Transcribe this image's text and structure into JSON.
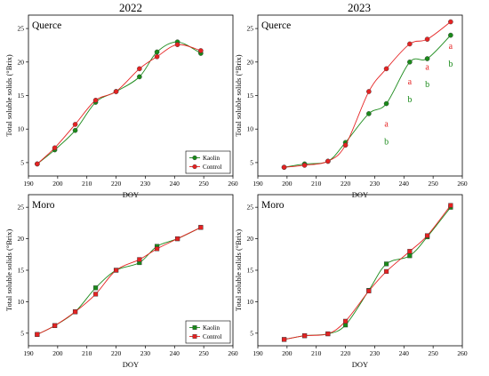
{
  "columns": [
    {
      "id": "c2022",
      "label": "2022"
    },
    {
      "id": "c2023",
      "label": "2023"
    }
  ],
  "colors": {
    "Kaolin": "#1a8a1a",
    "Control": "#e52222"
  },
  "chart_data": [
    {
      "id": "q22",
      "type": "line",
      "panel_label": "Querce",
      "xlabel": "DOY",
      "ylabel": "Total soluble solids (°Brix)",
      "xlim": [
        190,
        260
      ],
      "ylim": [
        3,
        27
      ],
      "xticks": [
        190,
        200,
        210,
        220,
        230,
        240,
        250,
        260
      ],
      "yticks": [
        5,
        10,
        15,
        20,
        25
      ],
      "legend": "bottom-right",
      "marker": "circle",
      "series": [
        {
          "name": "Kaolin",
          "x": [
            193,
            199,
            206,
            213,
            220,
            228,
            234,
            241,
            249
          ],
          "y": [
            4.8,
            6.9,
            9.8,
            14.0,
            15.6,
            17.8,
            21.5,
            23.0,
            21.3
          ]
        },
        {
          "name": "Control",
          "x": [
            193,
            199,
            206,
            213,
            220,
            228,
            234,
            241,
            249
          ],
          "y": [
            4.8,
            7.2,
            10.7,
            14.3,
            15.6,
            19.0,
            20.8,
            22.6,
            21.7
          ]
        }
      ],
      "annotations": []
    },
    {
      "id": "q23",
      "type": "line",
      "panel_label": "Querce",
      "xlabel": "DOY",
      "ylabel": "Total soluble solids (°Brix)",
      "xlim": [
        190,
        260
      ],
      "ylim": [
        3,
        27
      ],
      "xticks": [
        190,
        200,
        210,
        220,
        230,
        240,
        250,
        260
      ],
      "yticks": [
        5,
        10,
        15,
        20,
        25
      ],
      "legend": "none",
      "marker": "circle",
      "series": [
        {
          "name": "Kaolin",
          "x": [
            199,
            206,
            214,
            220,
            228,
            234,
            242,
            248,
            256
          ],
          "y": [
            4.3,
            4.8,
            5.2,
            8.0,
            12.3,
            13.8,
            20.0,
            20.5,
            24.0
          ]
        },
        {
          "name": "Control",
          "x": [
            199,
            206,
            214,
            220,
            228,
            234,
            242,
            248,
            256
          ],
          "y": [
            4.3,
            4.6,
            5.2,
            7.6,
            15.6,
            19.0,
            22.7,
            23.4,
            26.0
          ]
        }
      ],
      "annotations": [
        {
          "text": "a",
          "x": 234,
          "y": 10.8,
          "series": "Control"
        },
        {
          "text": "b",
          "x": 234,
          "y": 8.2,
          "series": "Kaolin"
        },
        {
          "text": "a",
          "x": 242,
          "y": 17.1,
          "series": "Control"
        },
        {
          "text": "b",
          "x": 242,
          "y": 14.5,
          "series": "Kaolin"
        },
        {
          "text": "a",
          "x": 248,
          "y": 19.3,
          "series": "Control"
        },
        {
          "text": "b",
          "x": 248,
          "y": 16.7,
          "series": "Kaolin"
        },
        {
          "text": "a",
          "x": 256,
          "y": 22.4,
          "series": "Control"
        },
        {
          "text": "b",
          "x": 256,
          "y": 19.8,
          "series": "Kaolin"
        }
      ]
    },
    {
      "id": "m22",
      "type": "line",
      "panel_label": "Moro",
      "xlabel": "DOY",
      "ylabel": "Total soluble solids (°Brix)",
      "xlim": [
        190,
        260
      ],
      "ylim": [
        3,
        27
      ],
      "xticks": [
        190,
        200,
        210,
        220,
        230,
        240,
        250,
        260
      ],
      "yticks": [
        5,
        10,
        15,
        20,
        25
      ],
      "legend": "bottom-right",
      "marker": "square",
      "series": [
        {
          "name": "Kaolin",
          "x": [
            193,
            199,
            206,
            213,
            220,
            228,
            234,
            241,
            249
          ],
          "y": [
            4.8,
            6.2,
            8.4,
            12.2,
            15.0,
            16.2,
            18.8,
            20.0,
            21.8
          ]
        },
        {
          "name": "Control",
          "x": [
            193,
            199,
            206,
            213,
            220,
            228,
            234,
            241,
            249
          ],
          "y": [
            4.8,
            6.2,
            8.4,
            11.2,
            15.0,
            16.7,
            18.4,
            20.0,
            21.8
          ]
        }
      ],
      "annotations": []
    },
    {
      "id": "m23",
      "type": "line",
      "panel_label": "Moro",
      "xlabel": "DOY",
      "ylabel": "Total soluble solids (°Brix)",
      "xlim": [
        190,
        260
      ],
      "ylim": [
        3,
        27
      ],
      "xticks": [
        190,
        200,
        210,
        220,
        230,
        240,
        250,
        260
      ],
      "yticks": [
        5,
        10,
        15,
        20,
        25
      ],
      "legend": "none",
      "marker": "square",
      "series": [
        {
          "name": "Kaolin",
          "x": [
            199,
            206,
            214,
            220,
            228,
            234,
            242,
            248,
            256
          ],
          "y": [
            4.0,
            4.6,
            4.9,
            6.3,
            11.8,
            16.0,
            17.3,
            20.3,
            25.0
          ]
        },
        {
          "name": "Control",
          "x": [
            199,
            206,
            214,
            220,
            228,
            234,
            242,
            248,
            256
          ],
          "y": [
            4.0,
            4.6,
            4.9,
            6.9,
            11.7,
            14.8,
            18.0,
            20.5,
            25.3
          ]
        }
      ],
      "annotations": []
    }
  ]
}
